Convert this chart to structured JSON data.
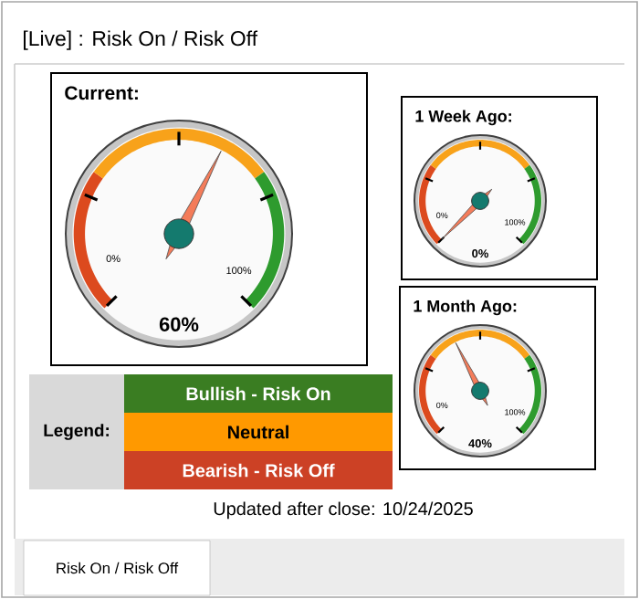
{
  "chart_data": [
    {
      "type": "other",
      "title": "[Live] : Risk On / Risk Off",
      "annotations": [
        "Legend:",
        "Bullish - Risk On",
        "Neutral",
        "Bearish - Risk Off",
        "Updated after close:  10/24/2025",
        "Risk On / Risk Off"
      ]
    },
    {
      "type": "other",
      "title": "Current:",
      "values": [
        60
      ],
      "value_labels": [
        "60%"
      ],
      "annotations": [
        "0%",
        "100%"
      ]
    },
    {
      "type": "other",
      "title": "1 Week Ago:",
      "values": [
        0
      ],
      "value_labels": [
        "0%"
      ],
      "annotations": [
        "0%",
        "100%"
      ]
    },
    {
      "type": "other",
      "title": "1 Month Ago:",
      "values": [
        40
      ],
      "value_labels": [
        "40%"
      ],
      "annotations": [
        "0%",
        "100%"
      ]
    }
  ]
}
